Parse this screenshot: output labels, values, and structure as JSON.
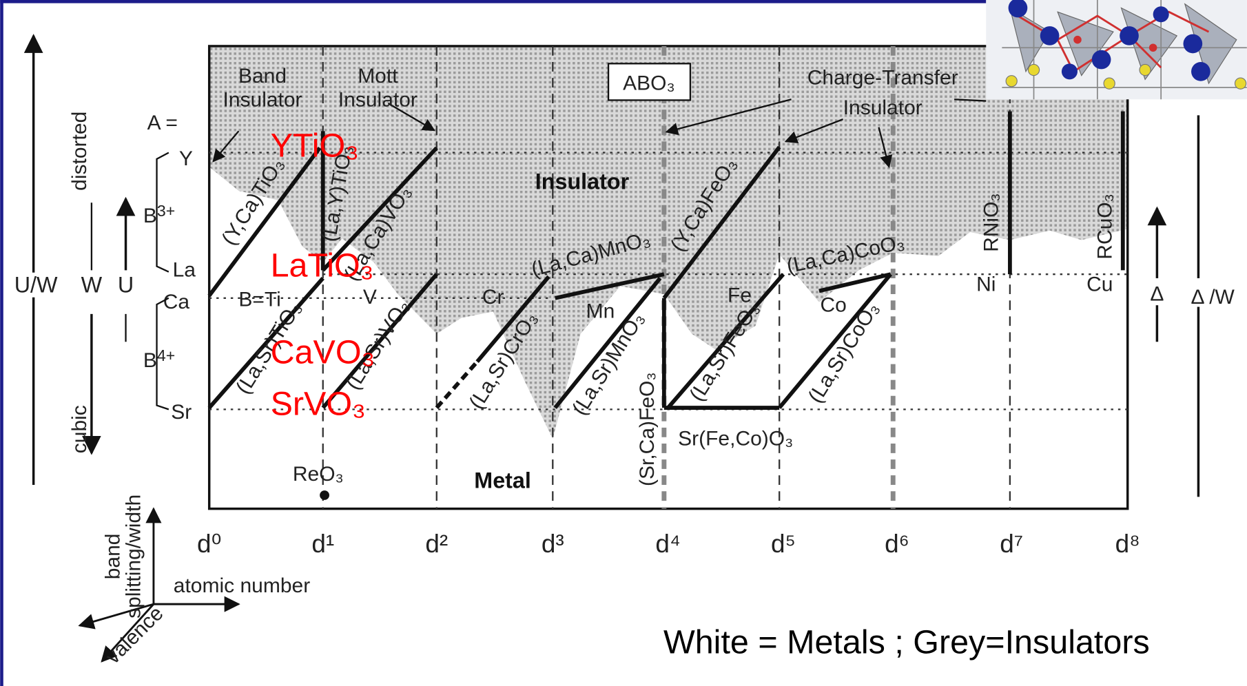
{
  "regions": {
    "band_insulator": [
      "Band",
      "Insulator"
    ],
    "mott_insulator": [
      "Mott",
      "Insulator"
    ],
    "formula": "ABO₃",
    "charge_transfer": [
      "Charge-Transfer",
      "Insulator"
    ],
    "insulator": "Insulator",
    "metal": "Metal"
  },
  "a_site": {
    "a_equals": "A =",
    "y": "Y",
    "b3": "B",
    "b3_charge": "3+",
    "la": "La",
    "ca": "Ca",
    "b4": "B",
    "b4_charge": "4+",
    "sr": "Sr",
    "b_ti": "B=Ti"
  },
  "left_axis": {
    "distorted": "distorted",
    "cubic": "cubic",
    "u_over_w": "U/W",
    "w": "W",
    "u": "U"
  },
  "right_axis": {
    "delta": "Δ",
    "delta_over_w": "Δ /W"
  },
  "compounds": [
    "(Y,Ca)TiO₃",
    "(La,Y)TiO₃",
    "(La,Ca)VO₃",
    "(La,Sr)TiO₃",
    "(La,Sr)VO₃",
    "(La,Sr)CrO₃",
    "(La,Ca)MnO₃",
    "(La,Sr)MnO₃",
    "(Y,Ca)FeO₃",
    "(La,Sr)FeO₃",
    "(Sr,Ca)FeO₃",
    "(La,Ca)CoO₃",
    "(La,Sr)CoO₃",
    "RNiO₃",
    "RCuO₃",
    "Sr(Fe,Co)O₃"
  ],
  "metals": [
    "V",
    "Cr",
    "Mn",
    "Fe",
    "Co",
    "Ni",
    "Cu"
  ],
  "reo3": "ReO₃",
  "d_counts": [
    "d⁰",
    "d¹",
    "d²",
    "d³",
    "d⁴",
    "d⁵",
    "d⁶",
    "d⁷",
    "d⁸"
  ],
  "axes_key": {
    "vertical": [
      "band",
      "splitting/width"
    ],
    "horizontal": "atomic number",
    "diagonal": "valence"
  },
  "highlighted": [
    "YTiO₃",
    "LaTiO₃",
    "CaVO₃",
    "SrVO₃"
  ],
  "caption": "White = Metals ; Grey=Insulators"
}
